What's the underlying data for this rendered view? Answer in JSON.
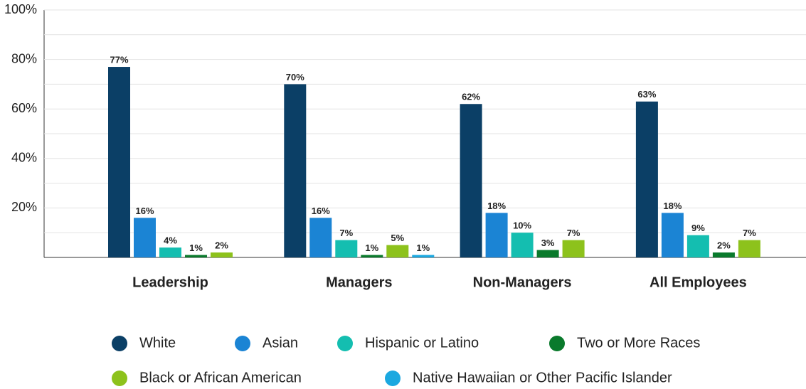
{
  "chart_data": {
    "type": "bar",
    "categories": [
      "Leadership",
      "Managers",
      "Non-Managers",
      "All Employees"
    ],
    "series": [
      {
        "name": "White",
        "color": "#0b3f66",
        "values": [
          77,
          70,
          62,
          63
        ],
        "value_labels": [
          "77%",
          "70%",
          "62%",
          "63%"
        ]
      },
      {
        "name": "Asian",
        "color": "#1b84d4",
        "values": [
          16,
          16,
          18,
          18
        ],
        "value_labels": [
          "16%",
          "16%",
          "18%",
          "18%"
        ]
      },
      {
        "name": "Hispanic or Latino",
        "color": "#14beb0",
        "values": [
          4,
          7,
          10,
          9
        ],
        "value_labels": [
          "4%",
          "7%",
          "10%",
          "9%"
        ]
      },
      {
        "name": "Two or More Races",
        "color": "#0a7a2c",
        "values": [
          1,
          1,
          3,
          2
        ],
        "value_labels": [
          "1%",
          "1%",
          "3%",
          "2%"
        ]
      },
      {
        "name": "Black or African American",
        "color": "#8dc21c",
        "values": [
          2,
          5,
          7,
          7
        ],
        "value_labels": [
          "2%",
          "5%",
          "7%",
          "7%"
        ]
      },
      {
        "name": "Native Hawaiian or Other Pacific Islander",
        "color": "#1ba8e0",
        "values": [
          null,
          1,
          null,
          null
        ],
        "value_labels": [
          null,
          "1%",
          null,
          null
        ]
      }
    ],
    "ylim": [
      0,
      100
    ],
    "yticks": [
      {
        "value": 20,
        "label": "20%"
      },
      {
        "value": 40,
        "label": "40%"
      },
      {
        "value": 60,
        "label": "60%"
      },
      {
        "value": 80,
        "label": "80%"
      },
      {
        "value": 100,
        "label": "100%"
      }
    ],
    "minor_yticks": [
      10,
      30,
      50,
      70,
      90
    ],
    "grid": true,
    "legend": "bottom"
  }
}
